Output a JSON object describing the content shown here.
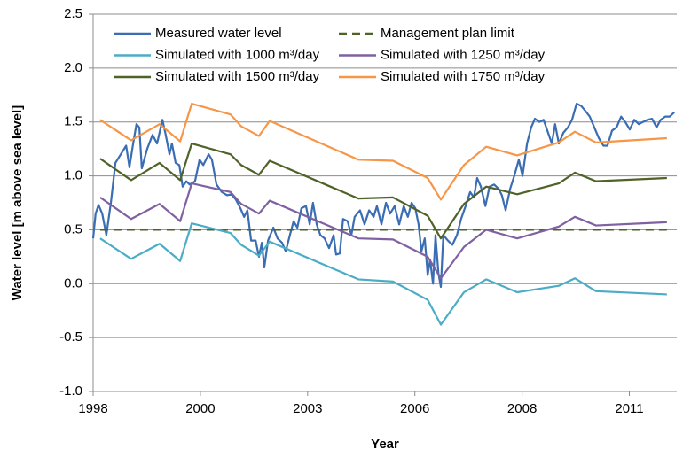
{
  "chart_data": {
    "type": "line",
    "ylabel": "Water level [m above sea level]",
    "xlabel": "Year",
    "xlim": [
      1998.3,
      2012.45
    ],
    "xticks": [
      {
        "value": 1998.3,
        "label": "1998"
      },
      {
        "value": 2000.9,
        "label": "2000"
      },
      {
        "value": 2003.5,
        "label": "2003"
      },
      {
        "value": 2006.1,
        "label": "2006"
      },
      {
        "value": 2008.7,
        "label": "2008"
      },
      {
        "value": 2011.3,
        "label": "2011"
      }
    ],
    "ylim": [
      -1,
      2.5
    ],
    "yticks": [
      {
        "value": -1,
        "label": "-1.0"
      },
      -0.5,
      {
        "value": 0,
        "label": "0.0"
      },
      0.5,
      {
        "value": 1,
        "label": "1.0"
      },
      1.5,
      {
        "value": 2,
        "label": "2.0"
      },
      2.5
    ],
    "grid": true,
    "legend_position": "top",
    "series": [
      {
        "name": "Measured water level",
        "color": "#3b6db3",
        "line_style": "solid",
        "x": [
          1998.3,
          1998.36,
          1998.43,
          1998.52,
          1998.62,
          1998.73,
          1998.84,
          1998.97,
          1999.1,
          1999.18,
          1999.27,
          1999.35,
          1999.42,
          1999.48,
          1999.61,
          1999.74,
          1999.85,
          1999.98,
          2000.06,
          2000.15,
          2000.21,
          2000.3,
          2000.39,
          2000.47,
          2000.56,
          2000.64,
          2000.77,
          2000.88,
          2000.97,
          2001.1,
          2001.18,
          2001.29,
          2001.42,
          2001.55,
          2001.65,
          2001.76,
          2001.87,
          2001.96,
          2002.04,
          2002.13,
          2002.24,
          2002.32,
          2002.39,
          2002.45,
          2002.54,
          2002.67,
          2002.77,
          2002.88,
          2002.97,
          2003.07,
          2003.16,
          2003.25,
          2003.35,
          2003.46,
          2003.55,
          2003.63,
          2003.72,
          2003.81,
          2003.91,
          2004.02,
          2004.13,
          2004.19,
          2004.28,
          2004.36,
          2004.47,
          2004.56,
          2004.64,
          2004.77,
          2004.88,
          2004.99,
          2005.1,
          2005.18,
          2005.29,
          2005.4,
          2005.5,
          2005.61,
          2005.72,
          2005.83,
          2005.93,
          2006.02,
          2006.11,
          2006.19,
          2006.26,
          2006.34,
          2006.41,
          2006.47,
          2006.54,
          2006.6,
          2006.67,
          2006.73,
          2006.79,
          2006.9,
          2007.01,
          2007.12,
          2007.22,
          2007.33,
          2007.44,
          2007.53,
          2007.61,
          2007.7,
          2007.81,
          2007.91,
          2008.02,
          2008.13,
          2008.21,
          2008.3,
          2008.41,
          2008.51,
          2008.62,
          2008.71,
          2008.82,
          2008.92,
          2009.01,
          2009.12,
          2009.22,
          2009.33,
          2009.42,
          2009.5,
          2009.59,
          2009.7,
          2009.81,
          2009.91,
          2010.02,
          2010.13,
          2010.24,
          2010.34,
          2010.45,
          2010.56,
          2010.67,
          2010.77,
          2010.88,
          2010.99,
          2011.1,
          2011.2,
          2011.31,
          2011.42,
          2011.53,
          2011.63,
          2011.74,
          2011.85,
          2011.96,
          2012.06,
          2012.17,
          2012.28,
          2012.39
        ],
        "values": [
          0.42,
          0.65,
          0.73,
          0.65,
          0.45,
          0.75,
          1.12,
          1.2,
          1.28,
          1.08,
          1.3,
          1.48,
          1.45,
          1.07,
          1.25,
          1.38,
          1.3,
          1.52,
          1.38,
          1.2,
          1.3,
          1.12,
          1.1,
          0.9,
          0.95,
          0.92,
          0.95,
          1.15,
          1.1,
          1.2,
          1.15,
          0.92,
          0.85,
          0.82,
          0.83,
          0.78,
          0.7,
          0.62,
          0.68,
          0.4,
          0.4,
          0.25,
          0.38,
          0.15,
          0.4,
          0.52,
          0.42,
          0.38,
          0.3,
          0.45,
          0.58,
          0.52,
          0.7,
          0.72,
          0.55,
          0.75,
          0.55,
          0.45,
          0.42,
          0.33,
          0.45,
          0.27,
          0.28,
          0.6,
          0.58,
          0.45,
          0.62,
          0.68,
          0.55,
          0.68,
          0.62,
          0.72,
          0.55,
          0.75,
          0.65,
          0.72,
          0.55,
          0.72,
          0.62,
          0.75,
          0.7,
          0.55,
          0.3,
          0.42,
          0.08,
          0.22,
          0.0,
          0.45,
          0.1,
          -0.03,
          0.45,
          0.4,
          0.36,
          0.45,
          0.6,
          0.72,
          0.85,
          0.8,
          0.98,
          0.9,
          0.72,
          0.9,
          0.92,
          0.88,
          0.82,
          0.68,
          0.88,
          1.0,
          1.15,
          1.0,
          1.3,
          1.45,
          1.53,
          1.5,
          1.52,
          1.4,
          1.3,
          1.48,
          1.3,
          1.4,
          1.45,
          1.52,
          1.67,
          1.65,
          1.6,
          1.55,
          1.45,
          1.35,
          1.28,
          1.28,
          1.42,
          1.45,
          1.55,
          1.5,
          1.43,
          1.52,
          1.48,
          1.5,
          1.52,
          1.53,
          1.45,
          1.52,
          1.55,
          1.55,
          1.59
        ]
      },
      {
        "name": "Management plan limit",
        "color": "#4f6228",
        "line_style": "dashed",
        "x": [
          1998.47,
          2012.21
        ],
        "values": [
          0.5,
          0.5
        ]
      },
      {
        "name": "Simulated with 1000 m³/day",
        "color": "#4bacc6",
        "line_style": "solid",
        "x": [
          1998.47,
          1999.22,
          1999.91,
          2000.41,
          2000.69,
          2001.63,
          2001.89,
          2002.32,
          2002.58,
          2004.73,
          2005.57,
          2006.41,
          2006.73,
          2007.29,
          2007.83,
          2008.58,
          2009.59,
          2009.98,
          2010.49,
          2012.21
        ],
        "values": [
          0.42,
          0.23,
          0.37,
          0.21,
          0.56,
          0.47,
          0.36,
          0.26,
          0.39,
          0.04,
          0.02,
          -0.15,
          -0.38,
          -0.08,
          0.04,
          -0.08,
          -0.02,
          0.05,
          -0.07,
          -0.1
        ]
      },
      {
        "name": "Simulated with 1250 m³/day",
        "color": "#7f60a0",
        "line_style": "solid",
        "x": [
          1998.47,
          1999.22,
          1999.91,
          2000.41,
          2000.69,
          2001.63,
          2001.89,
          2002.32,
          2002.58,
          2004.73,
          2005.57,
          2006.41,
          2006.73,
          2007.29,
          2007.83,
          2008.58,
          2009.59,
          2009.98,
          2010.49,
          2012.21
        ],
        "values": [
          0.8,
          0.6,
          0.74,
          0.58,
          0.93,
          0.85,
          0.74,
          0.65,
          0.77,
          0.42,
          0.41,
          0.25,
          0.05,
          0.34,
          0.5,
          0.42,
          0.53,
          0.62,
          0.54,
          0.57
        ]
      },
      {
        "name": "Simulated with 1500 m³/day",
        "color": "#4f6228",
        "line_style": "solid",
        "x": [
          1998.47,
          1999.22,
          1999.91,
          2000.41,
          2000.69,
          2001.63,
          2001.89,
          2002.32,
          2002.58,
          2004.73,
          2005.57,
          2006.41,
          2006.73,
          2007.29,
          2007.83,
          2008.58,
          2009.59,
          2009.98,
          2010.49,
          2012.21
        ],
        "values": [
          1.16,
          0.96,
          1.12,
          0.96,
          1.3,
          1.2,
          1.1,
          1.01,
          1.14,
          0.79,
          0.8,
          0.63,
          0.42,
          0.74,
          0.9,
          0.83,
          0.93,
          1.03,
          0.95,
          0.98
        ]
      },
      {
        "name": "Simulated with 1750 m³/day",
        "color": "#f79646",
        "line_style": "solid",
        "x": [
          1998.47,
          1999.22,
          1999.91,
          2000.41,
          2000.69,
          2001.63,
          2001.89,
          2002.32,
          2002.58,
          2004.73,
          2005.57,
          2006.41,
          2006.73,
          2007.29,
          2007.83,
          2008.58,
          2009.59,
          2009.98,
          2010.49,
          2012.21
        ],
        "values": [
          1.52,
          1.33,
          1.48,
          1.32,
          1.67,
          1.57,
          1.46,
          1.37,
          1.51,
          1.15,
          1.14,
          0.98,
          0.78,
          1.1,
          1.27,
          1.19,
          1.31,
          1.41,
          1.31,
          1.35
        ]
      }
    ]
  }
}
